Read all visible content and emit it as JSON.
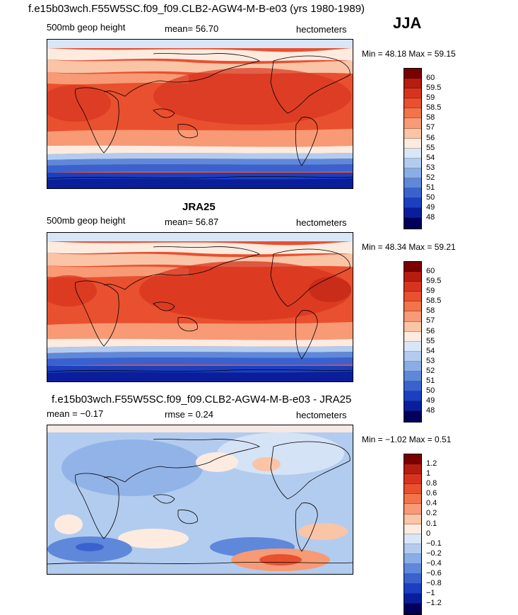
{
  "season": "JJA",
  "panels": [
    {
      "title": "f.e15b03wch.F55W5SC.f09_f09.CLB2-AGW4-M-B-e03 (yrs 1980-1989)",
      "variable": "500mb geop height",
      "stat_text": "mean=  56.70",
      "units": "hectometers",
      "minmax": "Min =  48.18  Max =  59.15",
      "colorbar_labels": [
        "60",
        "59.5",
        "59",
        "58.5",
        "58",
        "57",
        "56",
        "55",
        "54",
        "53",
        "52",
        "51",
        "50",
        "49",
        "48"
      ]
    },
    {
      "title": "JRA25",
      "variable": "500mb geop height",
      "stat_text": "mean=  56.87",
      "units": "hectometers",
      "minmax": "Min =  48.34  Max =  59.21",
      "colorbar_labels": [
        "60",
        "59.5",
        "59",
        "58.5",
        "58",
        "57",
        "56",
        "55",
        "54",
        "53",
        "52",
        "51",
        "50",
        "49",
        "48"
      ]
    },
    {
      "title": "f.e15b03wch.F55W5SC.f09_f09.CLB2-AGW4-M-B-e03 - JRA25",
      "variable": "mean =   −0.17",
      "stat_text": "rmse =    0.24",
      "units": "hectometers",
      "minmax": "Min =   −1.02  Max =    0.51",
      "colorbar_labels": [
        "1.2",
        "1",
        "0.8",
        "0.6",
        "0.4",
        "0.2",
        "0.1",
        "0",
        "−0.1",
        "−0.2",
        "−0.4",
        "−0.6",
        "−0.8",
        "−1",
        "−1.2"
      ]
    }
  ],
  "colors": {
    "scale": [
      "#7a0000",
      "#b51d10",
      "#d7341f",
      "#e9502f",
      "#f2744a",
      "#f79a75",
      "#fac4a7",
      "#fdebe0",
      "#d8e6f7",
      "#b2ccef",
      "#89ade6",
      "#5f88db",
      "#3a62cf",
      "#1c3fc0",
      "#0a1e9c",
      "#00005a"
    ]
  }
}
